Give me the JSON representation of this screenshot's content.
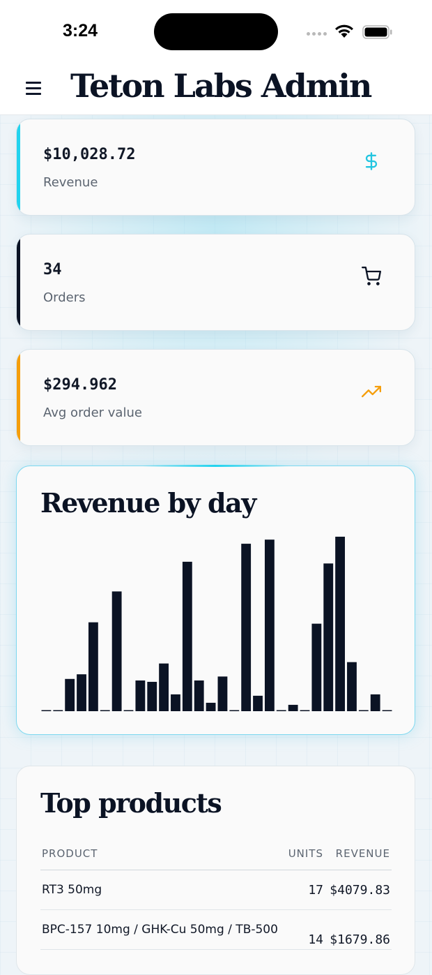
{
  "status_bar": {
    "time": "3:24"
  },
  "header": {
    "title": "Teton Labs Admin",
    "menu_icon": "hamburger-menu-icon"
  },
  "stats": [
    {
      "value": "$10,028.72",
      "label": "Revenue",
      "icon": "dollar-icon",
      "accent": "#22d3ee"
    },
    {
      "value": "34",
      "label": "Orders",
      "icon": "cart-icon",
      "accent": "#0b1324"
    },
    {
      "value": "$294.962",
      "label": "Avg order value",
      "icon": "trending-up-icon",
      "accent": "#f59e0b"
    }
  ],
  "revenue_chart": {
    "title": "Revenue by day",
    "chart_data": {
      "type": "bar",
      "values": [
        0.5,
        0.5,
        18.8,
        21.5,
        51.8,
        0.5,
        69.8,
        0.5,
        17.9,
        17.1,
        27.8,
        9.8,
        87.1,
        17.9,
        4.9,
        20.2,
        0.5,
        97.6,
        9.0,
        100,
        0.5,
        3.7,
        0.5,
        51.0,
        86.1,
        101.7,
        28.6,
        0.5,
        9.8,
        0.5
      ],
      "color": "#0b1324",
      "grid": false,
      "axes": "hidden"
    }
  },
  "top_products": {
    "title": "Top products",
    "columns": [
      "PRODUCT",
      "UNITS",
      "REVENUE"
    ],
    "rows": [
      {
        "product": "RT3 50mg",
        "units": "17",
        "revenue": "$4079.83"
      },
      {
        "product": "BPC-157 10mg / GHK-Cu 50mg / TB-500",
        "units": "14",
        "revenue": "$1679.86"
      }
    ]
  }
}
